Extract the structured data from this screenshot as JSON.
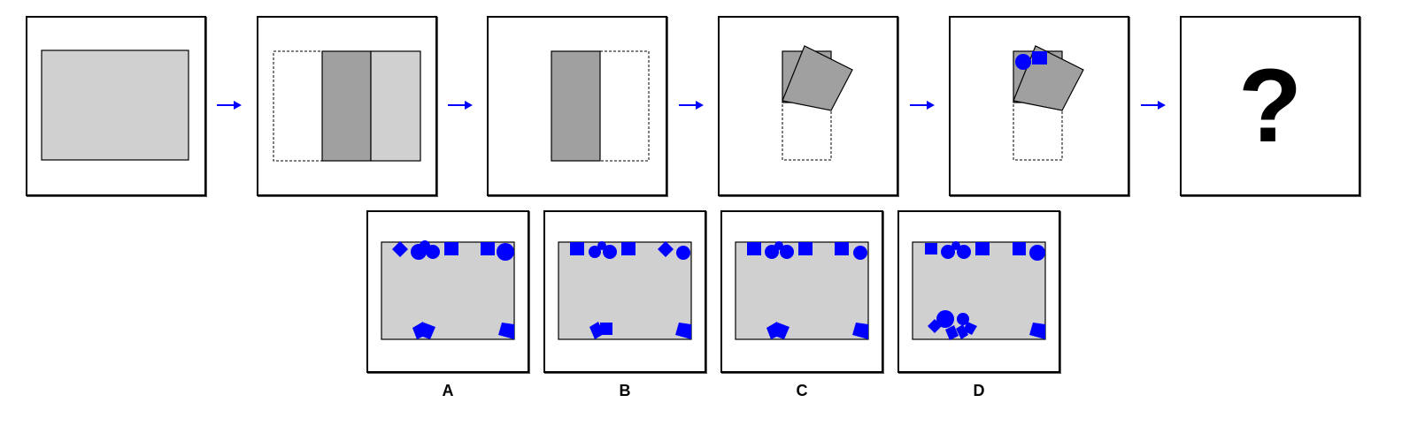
{
  "colors": {
    "paper": "#d0d0d0",
    "folded": "#a0a0a0",
    "punch": "#0000ff",
    "arrow": "#0000ff",
    "outline": "#000000"
  },
  "sequence": {
    "step_count": 5,
    "question_mark": "?",
    "steps": [
      {
        "name": "unfolded-paper"
      },
      {
        "name": "fold-left-and-right-to-center"
      },
      {
        "name": "fold-right-flap-over"
      },
      {
        "name": "fold-rotate-top-square"
      },
      {
        "name": "punch-circle-and-square"
      }
    ]
  },
  "options": [
    {
      "label": "A"
    },
    {
      "label": "B"
    },
    {
      "label": "C"
    },
    {
      "label": "D"
    }
  ]
}
